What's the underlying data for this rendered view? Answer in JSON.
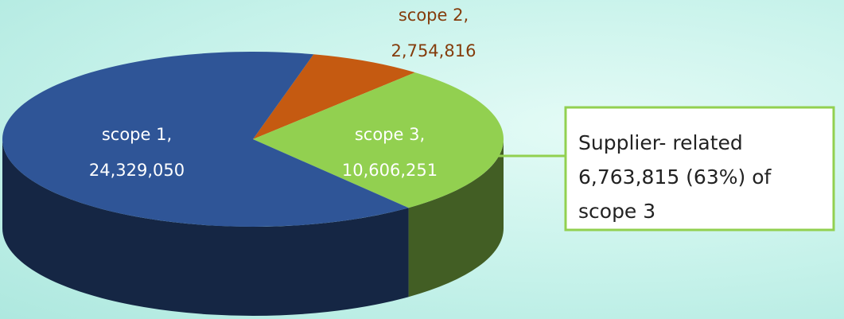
{
  "chart_data": {
    "type": "pie3d",
    "categories": [
      "scope 1,",
      "scope 2,",
      "scope 3,"
    ],
    "values": [
      24329050,
      2754816,
      10606251
    ],
    "value_labels": [
      "24,329,050",
      "2,754,816",
      "10,606,251"
    ],
    "colors": [
      "#2f5597",
      "#c55a11",
      "#92d050"
    ],
    "annotation": [
      "Supplier- related",
      "6,763,815 (63%) of",
      "scope 3"
    ]
  }
}
